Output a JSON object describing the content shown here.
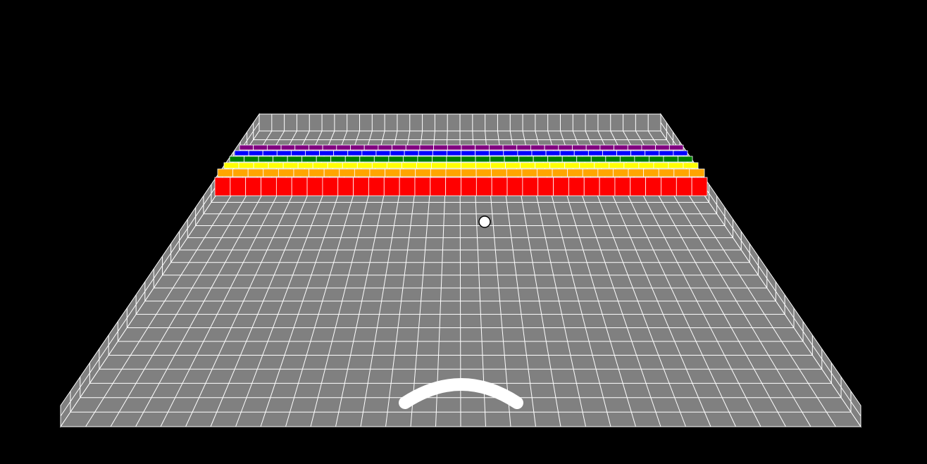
{
  "game": {
    "background_color": "#000000",
    "field": {
      "floor_color": "#808080",
      "grid_line_color": "#ffffff",
      "grid_columns": 32,
      "grid_rows": 24,
      "walls": [
        "left-wall",
        "right-wall",
        "back-wall"
      ]
    },
    "bricks": {
      "columns": 32,
      "rows": [
        {
          "color": "#800080",
          "name": "purple"
        },
        {
          "color": "#0000ff",
          "name": "blue"
        },
        {
          "color": "#008000",
          "name": "green"
        },
        {
          "color": "#ffff00",
          "name": "yellow"
        },
        {
          "color": "#ffa500",
          "name": "orange"
        },
        {
          "color": "#ff0000",
          "name": "red"
        }
      ]
    },
    "ball": {
      "color": "#ffffff",
      "outline": "#000000"
    },
    "paddle": {
      "color": "#ffffff",
      "shape": "curved-arc"
    }
  }
}
